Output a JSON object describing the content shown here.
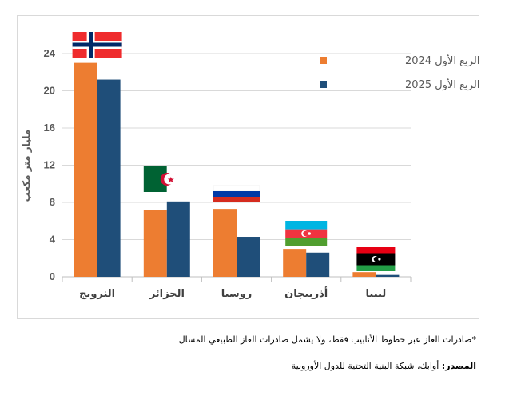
{
  "chart_data": {
    "type": "bar",
    "categories": [
      "النرويج",
      "الجزائر",
      "روسيا",
      "أذربيجان",
      "ليبيا"
    ],
    "flags": [
      "norway-flag",
      "algeria-flag",
      "russia-flag",
      "azerbaijan-flag",
      "libya-flag"
    ],
    "series": [
      {
        "name": "الربع الأول 2024",
        "values": [
          23.0,
          7.2,
          7.3,
          3.0,
          0.5
        ],
        "color": "#ed7d31"
      },
      {
        "name": "الربع الأول 2025",
        "values": [
          21.2,
          8.1,
          4.3,
          2.6,
          0.2
        ],
        "color": "#1f4e79"
      }
    ],
    "ylabel": "مليار متر مكعب",
    "ylim": [
      0,
      24
    ],
    "yticks": [
      0,
      4,
      8,
      12,
      16,
      20,
      24
    ],
    "grid": true,
    "legend_position": "top-right"
  },
  "footnote": "*صادرات الغاز عبر خطوط الأنابيب فقط، ولا يشمل صادرات الغاز الطبيعي المسال",
  "source": {
    "label": "المصدر:",
    "text": " أوابك، شبكة البنية التحتية للدول الأوروبية"
  }
}
